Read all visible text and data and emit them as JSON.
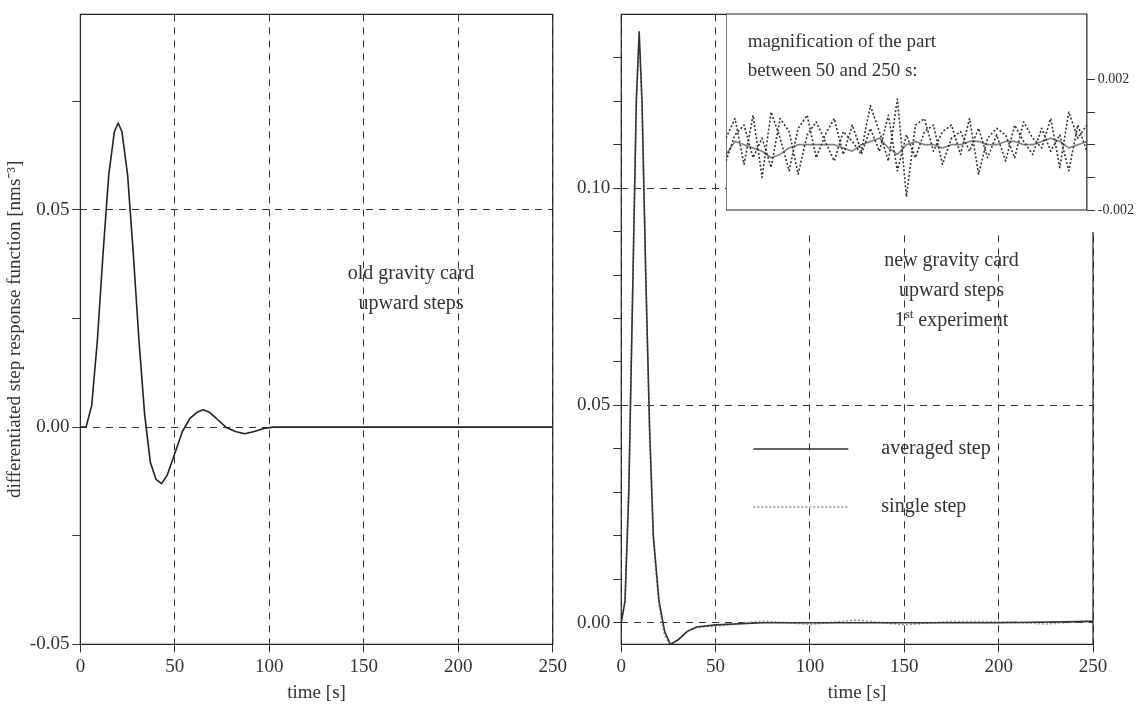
{
  "chart_data": [
    {
      "type": "line",
      "xlabel": "time [s]",
      "ylabel": "differentiated step response function [nms⁻³]",
      "xlim": [
        0,
        250
      ],
      "ylim": [
        -0.05,
        0.095
      ],
      "xticks": [
        0,
        50,
        100,
        150,
        200,
        250
      ],
      "yticks": [
        -0.05,
        {
          "value": -0.025,
          "label": null
        },
        {
          "value": 0,
          "label": "0.00"
        },
        {
          "value": 0.025,
          "label": null
        },
        0.05,
        {
          "value": 0.075,
          "label": null
        }
      ],
      "grid": true,
      "annotations": [
        "old gravity card\nupward steps"
      ],
      "series": [
        {
          "color": "#222222",
          "x": [
            0,
            3,
            6,
            9,
            12,
            15,
            18,
            20,
            22,
            25,
            28,
            31,
            34,
            37,
            40,
            43,
            46,
            50,
            54,
            58,
            62,
            65,
            68,
            72,
            77,
            82,
            87,
            92,
            97,
            102,
            110,
            150,
            200,
            250
          ],
          "values": [
            0,
            0,
            0.005,
            0.02,
            0.04,
            0.058,
            0.068,
            0.07,
            0.068,
            0.058,
            0.04,
            0.02,
            0.003,
            -0.008,
            -0.012,
            -0.013,
            -0.011,
            -0.006,
            -0.001,
            0.002,
            0.0035,
            0.004,
            0.0035,
            0.002,
            0,
            -0.001,
            -0.0015,
            -0.001,
            -0.0003,
            0,
            0,
            0,
            0,
            0
          ]
        }
      ]
    },
    {
      "type": "line",
      "xlabel": "time [s]",
      "xlim": [
        0,
        250
      ],
      "ylim": [
        -0.005,
        0.14
      ],
      "xticks": [
        0,
        50,
        100,
        150,
        200,
        250
      ],
      "yticks": [
        {
          "value": 0,
          "label": "0.00"
        },
        {
          "value": 0.01,
          "label": null
        },
        {
          "value": 0.02,
          "label": null
        },
        {
          "value": 0.03,
          "label": null
        },
        {
          "value": 0.04,
          "label": null
        },
        0.05,
        {
          "value": 0.06,
          "label": null
        },
        {
          "value": 0.07,
          "label": null
        },
        {
          "value": 0.08,
          "label": null
        },
        {
          "value": 0.09,
          "label": null
        },
        {
          "value": 0.1,
          "label": "0.10"
        },
        {
          "value": 0.11,
          "label": null
        },
        {
          "value": 0.12,
          "label": null
        },
        {
          "value": 0.13,
          "label": null
        }
      ],
      "grid": true,
      "legend": "bottom right",
      "annotations": [
        "new gravity card\nupward steps\n1$^{st}$ experiment"
      ],
      "series": [
        {
          "name": "averaged step",
          "color": "#333333",
          "x": [
            0,
            2,
            4,
            6,
            8,
            9.5,
            11,
            13,
            15,
            17,
            20,
            23,
            26,
            30,
            35,
            40,
            50,
            75,
            100,
            150,
            200,
            250
          ],
          "values": [
            0,
            0.005,
            0.03,
            0.075,
            0.12,
            0.136,
            0.12,
            0.08,
            0.045,
            0.02,
            0.005,
            -0.002,
            -0.005,
            -0.004,
            -0.002,
            -0.001,
            -0.0005,
            0,
            0,
            0,
            0,
            0.0003
          ]
        },
        {
          "name": "single step",
          "color": "#999999",
          "line_style": "dotted",
          "x": [
            0,
            2,
            4,
            6,
            8,
            9.5,
            11,
            13,
            15,
            17,
            20,
            23,
            26,
            30,
            35,
            40,
            50,
            75,
            100,
            125,
            150,
            175,
            200,
            225,
            250
          ],
          "values": [
            0,
            0.005,
            0.031,
            0.076,
            0.121,
            0.135,
            0.119,
            0.079,
            0.044,
            0.019,
            0.004,
            -0.003,
            -0.005,
            -0.004,
            -0.002,
            -0.001,
            -0.0008,
            0.0004,
            -0.0004,
            0.0006,
            -0.0005,
            0.0003,
            0.0002,
            -0.0003,
            0.0004
          ]
        }
      ]
    },
    {
      "type": "line",
      "categories": [
        null,
        null,
        null,
        null,
        null,
        null,
        null,
        null,
        null,
        null,
        null,
        null,
        null,
        null,
        null,
        null,
        null,
        null,
        null,
        null,
        null,
        null,
        null,
        null,
        null,
        null,
        null,
        null,
        null,
        null,
        null,
        null,
        null,
        null,
        null,
        null,
        null,
        null,
        null,
        null,
        null
      ],
      "ylim": [
        -0.002,
        0.004
      ],
      "yticks": [
        -0.002,
        {
          "value": -0.001,
          "label": null
        },
        {
          "value": 0,
          "label": null
        },
        {
          "value": 0.001,
          "label": null
        },
        0.002
      ],
      "tick_labels": "y",
      "annotations": [
        "magnification of the part\nbetween 50 and 250 s:"
      ],
      "series": [
        {
          "color": "#333333",
          "line_style": "dotted",
          "values": [
            0.0002,
            0.0008,
            -0.0006,
            0.0009,
            -0.001,
            0.001,
            0.0002,
            -0.0008,
            0.0005,
            0.0009,
            -0.0004,
            0.0003,
            0.0008,
            -0.0003,
            0.0006,
            -0.0002,
            0.0012,
            0.0004,
            -0.0005,
            0.0014,
            -0.0016,
            0.0006,
            0.0008,
            -0.0002,
            0.0004,
            0.0006,
            -0.0003,
            0.0008,
            -0.0009,
            0.0002,
            0.0005,
            0.0003,
            -0.0004,
            0.0007,
            0.0002,
            -0.0001,
            0.0008,
            -0.0007,
            0.001,
            0.0002,
            0.0006
          ]
        },
        {
          "color": "#333333",
          "line_style": "dotted",
          "values": [
            -0.0005,
            0.0003,
            0.0006,
            -0.0004,
            0.0002,
            -0.0007,
            0.0008,
            0.0004,
            -0.0009,
            0.0003,
            0.0007,
            0.0001,
            -0.0005,
            0.0004,
            0.0001,
            -0.0003,
            0.0005,
            -0.0002,
            0.0009,
            -0.0008,
            0.0003,
            -0.0004,
            0.0004,
            0.0006,
            -0.0006,
            0.0002,
            0.0004,
            -0.0002,
            0.0005,
            -0.0004,
            0.0003,
            -0.0005,
            0.0006,
            0.0001,
            -0.0003,
            0.0005,
            -0.0002,
            0.0003,
            -0.0008,
            0.0006,
            -0.0002
          ]
        },
        {
          "color": "#808080",
          "values": [
            -0.0003,
            0.0001,
            0,
            -0.0001,
            -0.0002,
            -0.0004,
            -0.0003,
            -0.0001,
            0,
            0,
            0,
            0,
            0,
            -0.0001,
            -0.0002,
            0,
            0.0001,
            0.0002,
            -0.0001,
            -0.0003,
            0,
            0.0001,
            0,
            0,
            -0.0001,
            0,
            0,
            0.0001,
            0.0001,
            0,
            0,
            0.0001,
            0.0001,
            0,
            0,
            0.0001,
            0.0002,
            0.0001,
            -0.0001,
            0,
            0.0001
          ]
        }
      ]
    }
  ]
}
